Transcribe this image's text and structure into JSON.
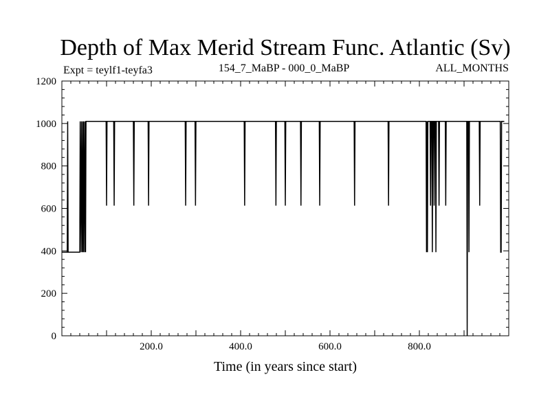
{
  "chart_data": {
    "type": "line",
    "title": "Depth of Max Merid Stream Func. Atlantic (Sv)",
    "subtitle_left": "Expt = teylf1-teyfa3",
    "subtitle_center": "154_7_MaBP - 000_0_MaBP",
    "subtitle_right": "ALL_MONTHS",
    "xlabel": "Time (in years since start)",
    "ylabel": "",
    "xlim": [
      0,
      1000
    ],
    "ylim": [
      0,
      1200
    ],
    "x_ticks": [
      200,
      400,
      600,
      800
    ],
    "x_tick_labels": [
      "200.0",
      "400.0",
      "600.0",
      "800.0"
    ],
    "y_ticks": [
      0,
      200,
      400,
      600,
      800,
      1000,
      1200
    ],
    "y_tick_labels": [
      "0",
      "200",
      "400",
      "600",
      "800",
      "1000",
      "1200"
    ],
    "grid": false,
    "series": [
      {
        "color": "#000000",
        "points": [
          [
            0,
            394
          ],
          [
            12,
            394
          ],
          [
            13,
            1010
          ],
          [
            14,
            394
          ],
          [
            40,
            394
          ],
          [
            41,
            1010
          ],
          [
            43,
            394
          ],
          [
            44,
            1010
          ],
          [
            46,
            394
          ],
          [
            47,
            1010
          ],
          [
            48,
            394
          ],
          [
            49,
            1010
          ],
          [
            51,
            394
          ],
          [
            52,
            1010
          ],
          [
            53,
            394
          ],
          [
            54,
            1010
          ],
          [
            99,
            1010
          ],
          [
            100,
            613
          ],
          [
            101,
            1010
          ],
          [
            116,
            1010
          ],
          [
            117,
            613
          ],
          [
            118,
            1010
          ],
          [
            160,
            1010
          ],
          [
            161,
            613
          ],
          [
            162,
            1010
          ],
          [
            193,
            1010
          ],
          [
            194,
            613
          ],
          [
            195,
            1010
          ],
          [
            276,
            1010
          ],
          [
            277,
            613
          ],
          [
            278,
            1010
          ],
          [
            298,
            1010
          ],
          [
            299,
            613
          ],
          [
            300,
            1010
          ],
          [
            408,
            1010
          ],
          [
            409,
            613
          ],
          [
            410,
            1010
          ],
          [
            478,
            1010
          ],
          [
            479,
            613
          ],
          [
            480,
            1010
          ],
          [
            499,
            1010
          ],
          [
            500,
            613
          ],
          [
            501,
            1010
          ],
          [
            534,
            1010
          ],
          [
            535,
            613
          ],
          [
            536,
            1010
          ],
          [
            576,
            1010
          ],
          [
            577,
            613
          ],
          [
            578,
            1010
          ],
          [
            654,
            1010
          ],
          [
            655,
            613
          ],
          [
            656,
            1010
          ],
          [
            730,
            1010
          ],
          [
            731,
            613
          ],
          [
            732,
            1010
          ],
          [
            815,
            1010
          ],
          [
            816,
            394
          ],
          [
            817,
            1010
          ],
          [
            818,
            394
          ],
          [
            819,
            1010
          ],
          [
            824,
            1010
          ],
          [
            825,
            613
          ],
          [
            826,
            1010
          ],
          [
            828,
            1010
          ],
          [
            829,
            394
          ],
          [
            830,
            1010
          ],
          [
            832,
            1010
          ],
          [
            833,
            613
          ],
          [
            834,
            1010
          ],
          [
            836,
            1010
          ],
          [
            837,
            394
          ],
          [
            838,
            1010
          ],
          [
            843,
            1010
          ],
          [
            844,
            613
          ],
          [
            845,
            1010
          ],
          [
            858,
            1010
          ],
          [
            859,
            613
          ],
          [
            860,
            1010
          ],
          [
            906,
            1010
          ],
          [
            907,
            0
          ],
          [
            908,
            1010
          ],
          [
            910,
            1010
          ],
          [
            911,
            394
          ],
          [
            912,
            1010
          ],
          [
            934,
            1010
          ],
          [
            935,
            613
          ],
          [
            936,
            1010
          ],
          [
            981,
            1010
          ],
          [
            982,
            394
          ],
          [
            983,
            394
          ],
          [
            984,
            1010
          ],
          [
            990,
            1010
          ]
        ]
      }
    ]
  }
}
